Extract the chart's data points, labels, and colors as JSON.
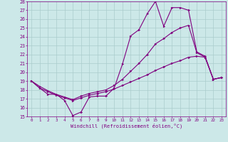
{
  "xlabel": "Windchill (Refroidissement éolien,°C)",
  "bg_color": "#cce8e8",
  "line_color": "#800080",
  "grid_color": "#aacccc",
  "xlim": [
    -0.5,
    23.5
  ],
  "ylim": [
    15,
    28
  ],
  "yticks": [
    15,
    16,
    17,
    18,
    19,
    20,
    21,
    22,
    23,
    24,
    25,
    26,
    27,
    28
  ],
  "xticks": [
    0,
    1,
    2,
    3,
    4,
    5,
    6,
    7,
    8,
    9,
    10,
    11,
    12,
    13,
    14,
    15,
    16,
    17,
    18,
    19,
    20,
    21,
    22,
    23
  ],
  "series1_x": [
    0,
    1,
    2,
    3,
    4,
    5,
    6,
    7,
    8,
    9,
    10,
    11,
    12,
    13,
    14,
    15,
    16,
    17,
    18,
    19,
    20,
    21,
    22,
    23
  ],
  "series1_y": [
    19.0,
    18.2,
    17.5,
    17.5,
    16.8,
    15.1,
    15.5,
    17.2,
    17.3,
    17.3,
    18.2,
    20.9,
    24.1,
    24.8,
    26.6,
    28.0,
    25.2,
    27.3,
    27.3,
    27.0,
    22.3,
    21.8,
    19.2,
    19.4
  ],
  "series2_x": [
    0,
    1,
    2,
    3,
    4,
    5,
    6,
    7,
    8,
    9,
    10,
    11,
    12,
    13,
    14,
    15,
    16,
    17,
    18,
    19,
    20,
    21,
    22,
    23
  ],
  "series2_y": [
    19.0,
    18.2,
    17.8,
    17.4,
    17.1,
    16.8,
    17.1,
    17.4,
    17.6,
    17.8,
    18.1,
    18.5,
    18.9,
    19.3,
    19.7,
    20.2,
    20.6,
    21.0,
    21.3,
    21.7,
    21.8,
    21.7,
    19.2,
    19.4
  ],
  "series3_x": [
    0,
    1,
    2,
    3,
    4,
    5,
    6,
    7,
    8,
    9,
    10,
    11,
    12,
    13,
    14,
    15,
    16,
    17,
    18,
    19,
    20,
    21,
    22,
    23
  ],
  "series3_y": [
    19.0,
    18.4,
    17.9,
    17.5,
    17.2,
    16.9,
    17.3,
    17.6,
    17.8,
    18.0,
    18.5,
    19.2,
    20.1,
    21.0,
    22.0,
    23.2,
    23.8,
    24.5,
    25.0,
    25.3,
    22.2,
    21.7,
    19.2,
    19.4
  ]
}
